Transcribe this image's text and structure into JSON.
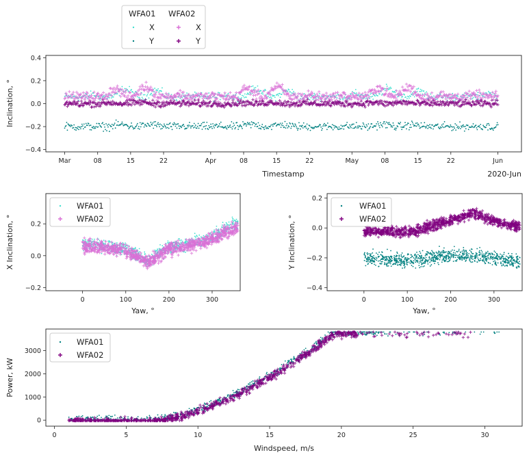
{
  "chart_data": [
    {
      "type": "scatter",
      "xlabel": "Timestamp",
      "ylabel": "Inclination, °",
      "x_ticks": [
        "Mar",
        "08",
        "15",
        "22",
        "Apr",
        "08",
        "15",
        "22",
        "May",
        "08",
        "15",
        "22",
        "Jun"
      ],
      "x_tick_dates": [
        "2020-03-01",
        "2020-03-08",
        "2020-03-15",
        "2020-03-22",
        "2020-04-01",
        "2020-04-08",
        "2020-04-15",
        "2020-04-22",
        "2020-05-01",
        "2020-05-08",
        "2020-05-15",
        "2020-05-22",
        "2020-06-01"
      ],
      "x_offset_label": "2020-Jun",
      "xlim": [
        "2020-02-26",
        "2020-06-06"
      ],
      "ylim": [
        -0.42,
        0.42
      ],
      "y_ticks": [
        "0.4",
        "0.2",
        "0.0",
        "−0.2",
        "−0.4"
      ],
      "legend": {
        "position": "outside-top-left",
        "columns": [
          {
            "title": "WFA01",
            "entries": [
              "X",
              "Y"
            ]
          },
          {
            "title": "WFA02",
            "entries": [
              "X",
              "Y"
            ]
          }
        ]
      },
      "series": [
        {
          "name": "WFA01 X",
          "marker": "dot",
          "color": "#40e0d0",
          "band": {
            "base": 0.06,
            "amp": 0.07,
            "spread": 0.05
          }
        },
        {
          "name": "WFA01 Y",
          "marker": "dot",
          "color": "#008080",
          "band": {
            "base": -0.2,
            "amp": 0.05,
            "spread": 0.05
          }
        },
        {
          "name": "WFA02 X",
          "marker": "plus",
          "color": "#da70d6",
          "band": {
            "base": 0.06,
            "amp": 0.09,
            "spread": 0.06
          }
        },
        {
          "name": "WFA02 Y",
          "marker": "plus",
          "color": "#800080",
          "band": {
            "base": 0.0,
            "amp": 0.03,
            "spread": 0.04
          }
        }
      ]
    },
    {
      "type": "scatter",
      "xlabel": "Yaw, °",
      "ylabel": "X Inclination, °",
      "xlim": [
        -85,
        365
      ],
      "ylim": [
        -0.22,
        0.39
      ],
      "x_ticks": [
        0,
        100,
        200,
        300
      ],
      "y_ticks": [
        "0.2",
        "0.0",
        "−0.2"
      ],
      "y_tick_values": [
        0.2,
        0.0,
        -0.2
      ],
      "legend": {
        "position": "upper-left",
        "entries": [
          "WFA01",
          "WFA02"
        ]
      },
      "series": [
        {
          "name": "WFA01",
          "marker": "dot",
          "color": "#40e0d0",
          "profile": [
            [
              0,
              0.07
            ],
            [
              50,
              0.06
            ],
            [
              100,
              0.04
            ],
            [
              150,
              -0.03
            ],
            [
              200,
              0.05
            ],
            [
              250,
              0.08
            ],
            [
              300,
              0.12
            ],
            [
              350,
              0.2
            ]
          ],
          "spread": 0.06
        },
        {
          "name": "WFA02",
          "marker": "plus",
          "color": "#da70d6",
          "profile": [
            [
              0,
              0.06
            ],
            [
              50,
              0.05
            ],
            [
              100,
              0.03
            ],
            [
              150,
              -0.04
            ],
            [
              200,
              0.04
            ],
            [
              250,
              0.07
            ],
            [
              300,
              0.1
            ],
            [
              350,
              0.17
            ]
          ],
          "spread": 0.06
        }
      ]
    },
    {
      "type": "scatter",
      "xlabel": "Yaw, °",
      "ylabel": "Y Inclination, °",
      "xlim": [
        -85,
        365
      ],
      "ylim": [
        -0.42,
        0.23
      ],
      "x_ticks": [
        0,
        100,
        200,
        300
      ],
      "y_ticks": [
        "0.2",
        "0.0",
        "−0.2",
        "−0.4"
      ],
      "y_tick_values": [
        0.2,
        0.0,
        -0.2,
        -0.4
      ],
      "legend": {
        "position": "upper-left",
        "entries": [
          "WFA01",
          "WFA02"
        ]
      },
      "series": [
        {
          "name": "WFA01",
          "marker": "dot",
          "color": "#008080",
          "profile": [
            [
              0,
              -0.2
            ],
            [
              100,
              -0.22
            ],
            [
              200,
              -0.18
            ],
            [
              300,
              -0.2
            ],
            [
              350,
              -0.22
            ]
          ],
          "spread": 0.07
        },
        {
          "name": "WFA02",
          "marker": "plus",
          "color": "#800080",
          "profile": [
            [
              0,
              -0.02
            ],
            [
              100,
              -0.03
            ],
            [
              200,
              0.05
            ],
            [
              250,
              0.1
            ],
            [
              300,
              0.05
            ],
            [
              350,
              0.01
            ]
          ],
          "spread": 0.05
        }
      ]
    },
    {
      "type": "scatter",
      "xlabel": "Windspeed, m/s",
      "ylabel": "Power, kW",
      "xlim": [
        -0.6,
        32.6
      ],
      "ylim": [
        -260,
        3930
      ],
      "x_ticks": [
        0,
        5,
        10,
        15,
        20,
        25,
        30
      ],
      "y_ticks": [
        0,
        1000,
        2000,
        3000
      ],
      "legend": {
        "position": "upper-left",
        "entries": [
          "WFA01",
          "WFA02"
        ]
      },
      "series": [
        {
          "name": "WFA01",
          "marker": "dot",
          "color": "#008080",
          "rated_power": 3800,
          "cut_in": 1,
          "max_speed": 31
        },
        {
          "name": "WFA02",
          "marker": "plus",
          "color": "#800080",
          "rated_power": 3800,
          "cut_in": 1,
          "max_speed": 29
        }
      ]
    }
  ]
}
